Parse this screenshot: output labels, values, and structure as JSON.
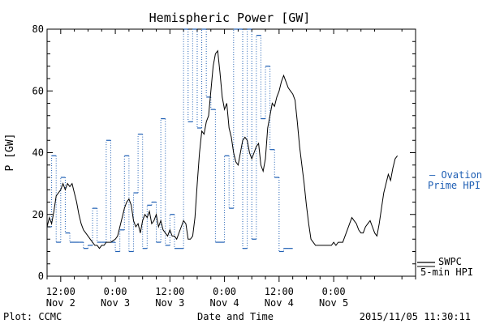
{
  "chart_data": {
    "type": "line",
    "title": "Hemispheric Power [GW]",
    "xlabel": "Date and Time",
    "ylabel": "P [GW]",
    "ylim": [
      0,
      80
    ],
    "yticks": [
      0,
      20,
      40,
      60,
      80
    ],
    "xlim_hours": [
      -3,
      78
    ],
    "xticks": [
      {
        "h": 0,
        "time": "12:00",
        "date": "Nov 2"
      },
      {
        "h": 12,
        "time": "0:00",
        "date": "Nov 3"
      },
      {
        "h": 24,
        "time": "12:00",
        "date": "Nov 3"
      },
      {
        "h": 36,
        "time": "0:00",
        "date": "Nov 4"
      },
      {
        "h": 48,
        "time": "12:00",
        "date": "Nov 4"
      },
      {
        "h": 60,
        "time": "0:00",
        "date": "Nov 5"
      }
    ],
    "series": [
      {
        "name": "SWPC 5-min HPI",
        "color": "#000000",
        "style": "solid",
        "points": [
          [
            -3,
            16
          ],
          [
            -2.5,
            19
          ],
          [
            -2,
            17
          ],
          [
            -1.5,
            21
          ],
          [
            -1,
            26
          ],
          [
            0,
            28
          ],
          [
            0.5,
            30
          ],
          [
            1,
            28
          ],
          [
            1.5,
            30
          ],
          [
            2,
            29
          ],
          [
            2.5,
            30
          ],
          [
            3,
            27
          ],
          [
            3.5,
            24
          ],
          [
            4,
            20
          ],
          [
            4.5,
            17
          ],
          [
            5,
            15
          ],
          [
            5.5,
            14
          ],
          [
            6,
            13
          ],
          [
            6.5,
            12
          ],
          [
            7,
            11
          ],
          [
            7.5,
            10
          ],
          [
            8,
            10
          ],
          [
            8.5,
            9
          ],
          [
            9,
            10
          ],
          [
            9.5,
            10
          ],
          [
            10,
            11
          ],
          [
            11,
            11
          ],
          [
            12,
            12
          ],
          [
            12.5,
            13
          ],
          [
            13,
            16
          ],
          [
            13.5,
            19
          ],
          [
            14,
            22
          ],
          [
            14.5,
            24
          ],
          [
            15,
            25
          ],
          [
            15.5,
            23
          ],
          [
            16,
            18
          ],
          [
            16.5,
            16
          ],
          [
            17,
            17
          ],
          [
            17.5,
            14
          ],
          [
            18,
            18
          ],
          [
            18.5,
            20
          ],
          [
            19,
            19
          ],
          [
            19.5,
            21
          ],
          [
            20,
            17
          ],
          [
            20.5,
            18
          ],
          [
            21,
            20
          ],
          [
            21.5,
            16
          ],
          [
            22,
            18
          ],
          [
            22.5,
            15
          ],
          [
            23,
            14
          ],
          [
            23.5,
            13
          ],
          [
            24,
            15
          ],
          [
            24.5,
            13
          ],
          [
            25,
            13
          ],
          [
            25.5,
            12
          ],
          [
            26,
            14
          ],
          [
            26.5,
            16
          ],
          [
            27,
            18
          ],
          [
            27.5,
            17
          ],
          [
            28,
            12
          ],
          [
            28.5,
            12
          ],
          [
            29,
            13
          ],
          [
            29.5,
            19
          ],
          [
            30,
            30
          ],
          [
            30.5,
            40
          ],
          [
            31,
            47
          ],
          [
            31.5,
            46
          ],
          [
            32,
            50
          ],
          [
            32.5,
            52
          ],
          [
            33,
            60
          ],
          [
            33.5,
            68
          ],
          [
            34,
            72
          ],
          [
            34.5,
            73
          ],
          [
            35,
            66
          ],
          [
            35.5,
            58
          ],
          [
            36,
            54
          ],
          [
            36.5,
            56
          ],
          [
            37,
            48
          ],
          [
            37.5,
            45
          ],
          [
            38,
            40
          ],
          [
            38.5,
            37
          ],
          [
            39,
            36
          ],
          [
            39.5,
            40
          ],
          [
            40,
            44
          ],
          [
            40.5,
            45
          ],
          [
            41,
            44
          ],
          [
            41.5,
            40
          ],
          [
            42,
            38
          ],
          [
            42.5,
            40
          ],
          [
            43,
            42
          ],
          [
            43.5,
            43
          ],
          [
            44,
            36
          ],
          [
            44.5,
            34
          ],
          [
            45,
            38
          ],
          [
            45.5,
            48
          ],
          [
            46,
            52
          ],
          [
            46.5,
            56
          ],
          [
            47,
            55
          ],
          [
            47.5,
            58
          ],
          [
            48,
            60
          ],
          [
            48.5,
            63
          ],
          [
            49,
            65
          ],
          [
            49.5,
            63
          ],
          [
            50,
            61
          ],
          [
            50.5,
            60
          ],
          [
            51,
            59
          ],
          [
            51.5,
            57
          ],
          [
            52,
            50
          ],
          [
            52.5,
            42
          ],
          [
            53,
            36
          ],
          [
            53.5,
            30
          ],
          [
            54,
            23
          ],
          [
            54.5,
            17
          ],
          [
            55,
            12
          ],
          [
            55.5,
            11
          ],
          [
            56,
            10
          ],
          [
            57,
            10
          ],
          [
            58,
            10
          ],
          [
            59,
            10
          ],
          [
            59.5,
            10
          ],
          [
            60,
            11
          ],
          [
            60.5,
            10
          ],
          [
            61,
            11
          ],
          [
            62,
            11
          ],
          [
            62.5,
            13
          ],
          [
            63,
            15
          ],
          [
            63.5,
            17
          ],
          [
            64,
            19
          ],
          [
            64.5,
            18
          ],
          [
            65,
            17
          ],
          [
            65.5,
            15
          ],
          [
            66,
            14
          ],
          [
            66.5,
            14
          ],
          [
            67,
            16
          ],
          [
            67.5,
            17
          ],
          [
            68,
            18
          ],
          [
            68.5,
            16
          ],
          [
            69,
            14
          ],
          [
            69.5,
            13
          ],
          [
            70,
            17
          ],
          [
            70.5,
            22
          ],
          [
            71,
            27
          ],
          [
            71.5,
            30
          ],
          [
            72,
            33
          ],
          [
            72.5,
            31
          ],
          [
            73,
            35
          ],
          [
            73.5,
            38
          ],
          [
            74,
            39
          ]
        ]
      },
      {
        "name": "Ovation Prime HPI",
        "color": "#1f5fb4",
        "style": "dotted-step",
        "points": [
          [
            -3,
            16
          ],
          [
            -2,
            39
          ],
          [
            -1,
            11
          ],
          [
            0,
            32
          ],
          [
            1,
            14
          ],
          [
            2,
            11
          ],
          [
            4,
            11
          ],
          [
            5,
            9
          ],
          [
            6,
            10
          ],
          [
            7,
            22
          ],
          [
            8,
            11
          ],
          [
            9,
            11
          ],
          [
            10,
            44
          ],
          [
            11,
            11
          ],
          [
            12,
            8
          ],
          [
            13,
            15
          ],
          [
            14,
            39
          ],
          [
            15,
            8
          ],
          [
            16,
            27
          ],
          [
            17,
            46
          ],
          [
            18,
            9
          ],
          [
            19,
            23
          ],
          [
            20,
            24
          ],
          [
            21,
            11
          ],
          [
            22,
            51
          ],
          [
            23,
            10
          ],
          [
            24,
            20
          ],
          [
            25,
            9
          ],
          [
            27,
            80
          ],
          [
            28,
            50
          ],
          [
            29,
            80
          ],
          [
            30,
            48
          ],
          [
            31,
            80
          ],
          [
            32,
            58
          ],
          [
            33,
            54
          ],
          [
            34,
            11
          ],
          [
            36,
            39
          ],
          [
            37,
            22
          ],
          [
            38,
            80
          ],
          [
            39,
            80
          ],
          [
            40,
            9
          ],
          [
            41,
            80
          ],
          [
            42,
            12
          ],
          [
            43,
            78
          ],
          [
            44,
            51
          ],
          [
            45,
            68
          ],
          [
            46,
            41
          ],
          [
            47,
            32
          ],
          [
            48,
            8
          ],
          [
            49,
            9
          ],
          [
            50,
            9
          ]
        ]
      }
    ],
    "legend": [
      {
        "lines": [
          "— Ovation",
          "Prime HPI"
        ],
        "color": "#1f5fb4",
        "placement": "right"
      },
      {
        "lines": [
          "SWPC",
          "5-min HPI"
        ],
        "color": "#000000",
        "placement": "right-bottom"
      }
    ],
    "footer_left": "Plot: CCMC",
    "footer_right": "2015/11/05 11:30:11"
  }
}
